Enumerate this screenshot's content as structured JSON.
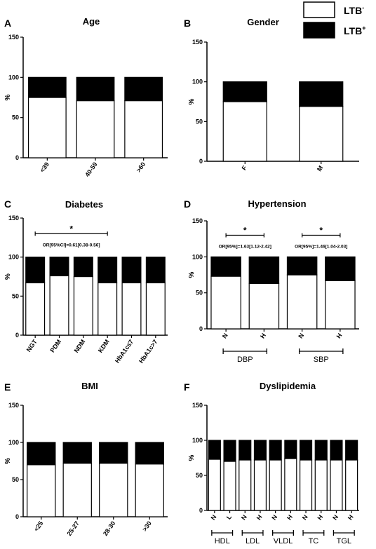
{
  "legend": {
    "items": [
      {
        "label": "LTB",
        "sup": "-",
        "color": "#ffffff"
      },
      {
        "label": "LTB",
        "sup": "+",
        "color": "#000000"
      }
    ]
  },
  "colors": {
    "negative": "#ffffff",
    "positive": "#000000"
  },
  "chart_data": [
    {
      "letter": "A",
      "title": "Age",
      "type": "bar",
      "stacked": true,
      "ylabel": "%",
      "ylim": [
        0,
        150
      ],
      "yticks": [
        0,
        50,
        100,
        150
      ],
      "categories": [
        "<39",
        "40-59",
        ">60"
      ],
      "series": [
        {
          "name": "LTB-",
          "values": [
            75,
            71,
            71
          ]
        },
        {
          "name": "LTB+",
          "values": [
            25,
            29,
            29
          ]
        }
      ]
    },
    {
      "letter": "B",
      "title": "Gender",
      "type": "bar",
      "stacked": true,
      "ylabel": "%",
      "ylim": [
        0,
        150
      ],
      "yticks": [
        0,
        50,
        100,
        150
      ],
      "categories": [
        "F",
        "M"
      ],
      "series": [
        {
          "name": "LTB-",
          "values": [
            75,
            69
          ]
        },
        {
          "name": "LTB+",
          "values": [
            25,
            31
          ]
        }
      ]
    },
    {
      "letter": "C",
      "title": "Diabetes",
      "type": "bar",
      "stacked": true,
      "ylabel": "%",
      "ylim": [
        0,
        150
      ],
      "yticks": [
        0,
        50,
        100,
        150
      ],
      "categories": [
        "NGT",
        "PDM",
        "NDM",
        "KDM",
        "HbA1c≤7",
        "HbA1c>7"
      ],
      "series": [
        {
          "name": "LTB-",
          "values": [
            67,
            76,
            75,
            67,
            67,
            67
          ]
        },
        {
          "name": "LTB+",
          "values": [
            33,
            24,
            25,
            33,
            33,
            33
          ]
        }
      ],
      "annotations": [
        {
          "from": 0,
          "to": 3,
          "star": "*",
          "text": "OR[95%CI]=0.61[0.38-0.56]"
        }
      ]
    },
    {
      "letter": "D",
      "title": "Hypertension",
      "type": "bar",
      "stacked": true,
      "ylabel": "%",
      "ylim": [
        0,
        150
      ],
      "yticks": [
        0,
        50,
        100,
        150
      ],
      "categories": [
        "N",
        "H",
        "N",
        "H"
      ],
      "series": [
        {
          "name": "LTB-",
          "values": [
            73,
            63,
            75,
            67
          ]
        },
        {
          "name": "LTB+",
          "values": [
            27,
            37,
            25,
            33
          ]
        }
      ],
      "groups": [
        {
          "label": "DBP",
          "from": 0,
          "to": 1
        },
        {
          "label": "SBP",
          "from": 2,
          "to": 3
        }
      ],
      "annotations": [
        {
          "from": 0,
          "to": 1,
          "star": "*",
          "text": "OR[95%]=1.63[1.12-2.42]"
        },
        {
          "from": 2,
          "to": 3,
          "star": "*",
          "text": "OR[95%]=1.46[1.04-2.03]"
        }
      ]
    },
    {
      "letter": "E",
      "title": "BMI",
      "type": "bar",
      "stacked": true,
      "ylabel": "%",
      "ylim": [
        0,
        150
      ],
      "yticks": [
        0,
        50,
        100,
        150
      ],
      "categories": [
        "<25",
        "25-27",
        "28-30",
        ">30"
      ],
      "series": [
        {
          "name": "LTB-",
          "values": [
            70,
            72,
            72,
            71
          ]
        },
        {
          "name": "LTB+",
          "values": [
            30,
            28,
            28,
            29
          ]
        }
      ]
    },
    {
      "letter": "F",
      "title": "Dyslipidemia",
      "type": "bar",
      "stacked": true,
      "ylabel": "%",
      "ylim": [
        0,
        150
      ],
      "yticks": [
        0,
        50,
        100,
        150
      ],
      "categories": [
        "N",
        "L",
        "N",
        "H",
        "N",
        "H",
        "N",
        "H",
        "N",
        "H"
      ],
      "series": [
        {
          "name": "LTB-",
          "values": [
            73,
            70,
            72,
            72,
            72,
            74,
            72,
            72,
            72,
            72
          ]
        },
        {
          "name": "LTB+",
          "values": [
            27,
            30,
            28,
            28,
            28,
            26,
            28,
            28,
            28,
            28
          ]
        }
      ],
      "groups": [
        {
          "label": "HDL",
          "from": 0,
          "to": 1
        },
        {
          "label": "LDL",
          "from": 2,
          "to": 3
        },
        {
          "label": "VLDL",
          "from": 4,
          "to": 5
        },
        {
          "label": "TC",
          "from": 6,
          "to": 7
        },
        {
          "label": "TGL",
          "from": 8,
          "to": 9
        }
      ]
    }
  ]
}
